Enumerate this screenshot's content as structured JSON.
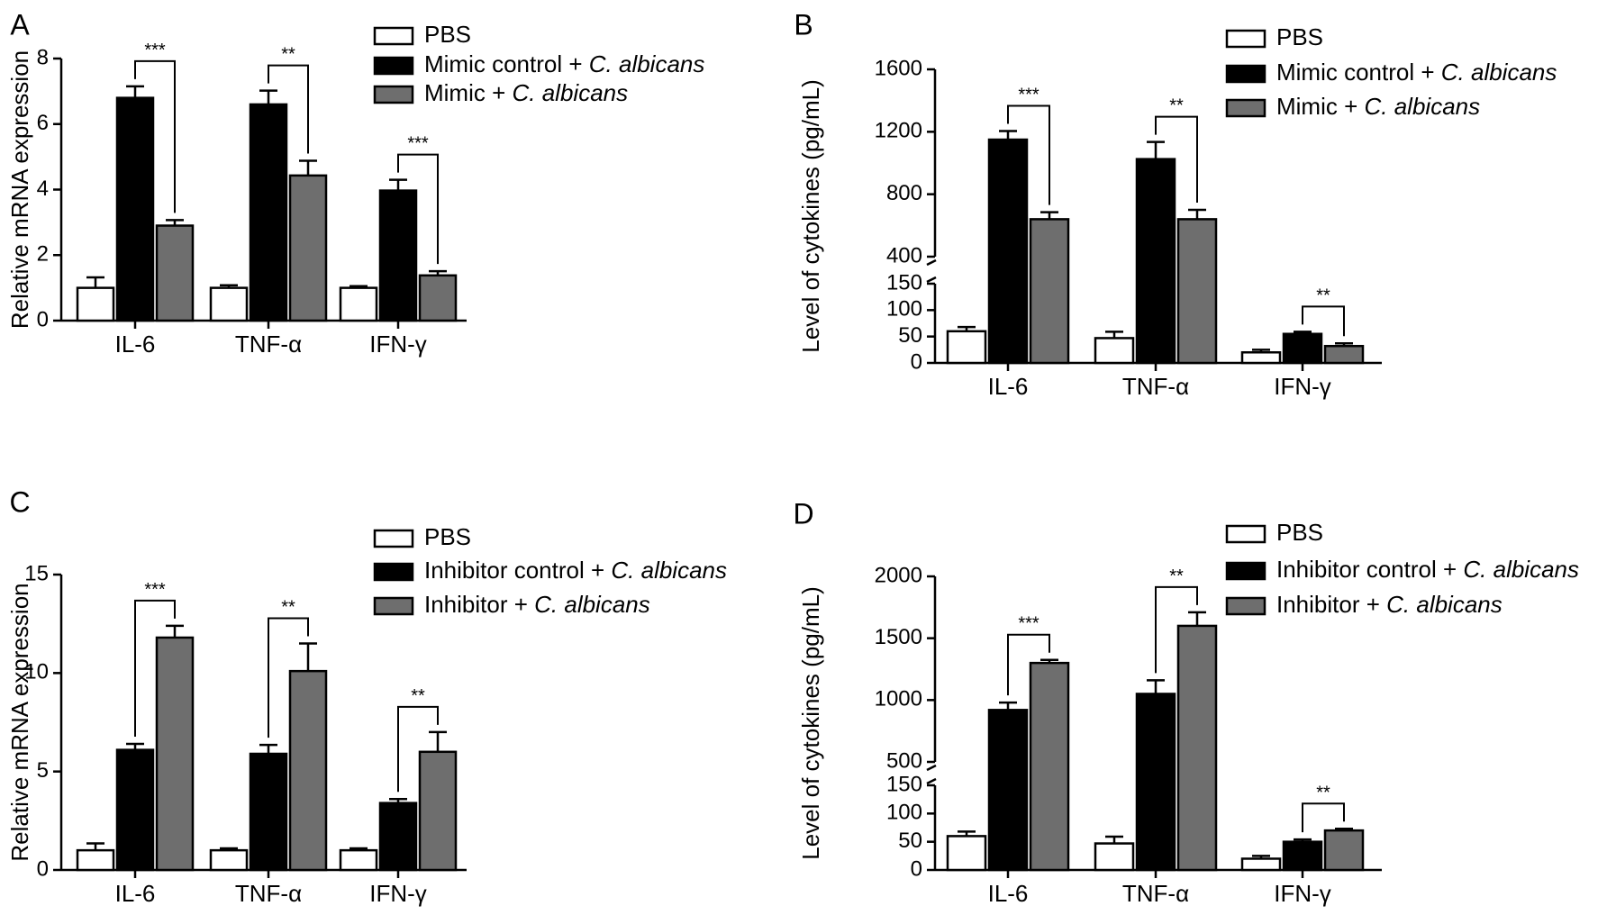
{
  "legend_colors": {
    "PBS": "#ffffff",
    "control": "#000000",
    "treated": "#6e6e6e"
  },
  "chart_data": [
    {
      "panel": "A",
      "type": "bar",
      "ylabel": "Relative mRNA expression",
      "categories": [
        "IL-6",
        "TNF-α",
        "IFN-γ"
      ],
      "ylim": [
        0,
        8
      ],
      "yticks": [
        "0",
        "2",
        "4",
        "6",
        "8"
      ],
      "series": [
        {
          "legend": "PBS",
          "legend_italic": "",
          "values": [
            1.0,
            1.0,
            1.0
          ],
          "err": [
            0.32,
            0.08,
            0.05
          ]
        },
        {
          "legend": "Mimic control + ",
          "legend_italic": "C. albicans",
          "values": [
            6.8,
            6.6,
            3.97
          ],
          "err": [
            0.35,
            0.42,
            0.33
          ]
        },
        {
          "legend": "Mimic + ",
          "legend_italic": "C. albicans",
          "values": [
            2.9,
            4.43,
            1.38
          ],
          "err": [
            0.17,
            0.45,
            0.13
          ]
        }
      ],
      "significance": [
        "***",
        "**",
        "***"
      ]
    },
    {
      "panel": "B",
      "type": "bar",
      "ylabel": "Level of cytokines (pg/mL)",
      "categories": [
        "IL-6",
        "TNF-α",
        "IFN-γ"
      ],
      "axis_break": true,
      "ylim_lower": [
        0,
        150
      ],
      "ylim_upper": [
        400,
        1600
      ],
      "yticks_lower": [
        "0",
        "50",
        "100",
        "150"
      ],
      "yticks_upper": [
        "400",
        "800",
        "1200",
        "1600"
      ],
      "series": [
        {
          "legend": "PBS",
          "legend_italic": "",
          "values": [
            60,
            47,
            20
          ],
          "err": [
            8,
            12,
            5
          ]
        },
        {
          "legend": "Mimic control + ",
          "legend_italic": "C. albicans",
          "values": [
            1150,
            1025,
            55
          ],
          "err": [
            55,
            110,
            4
          ]
        },
        {
          "legend": "Mimic + ",
          "legend_italic": "C. albicans",
          "values": [
            640,
            640,
            32
          ],
          "err": [
            45,
            60,
            5
          ]
        }
      ],
      "significance": [
        "***",
        "**",
        "**"
      ]
    },
    {
      "panel": "C",
      "type": "bar",
      "ylabel": "Relative mRNA expression",
      "categories": [
        "IL-6",
        "TNF-α",
        "IFN-γ"
      ],
      "ylim": [
        0,
        15
      ],
      "yticks": [
        "0",
        "5",
        "10",
        "15"
      ],
      "series": [
        {
          "legend": "PBS",
          "legend_italic": "",
          "values": [
            1.0,
            1.0,
            1.0
          ],
          "err": [
            0.35,
            0.1,
            0.1
          ]
        },
        {
          "legend": "Inhibitor control + ",
          "legend_italic": "C. albicans",
          "values": [
            6.1,
            5.9,
            3.4
          ],
          "err": [
            0.3,
            0.45,
            0.2
          ]
        },
        {
          "legend": "Inhibitor + ",
          "legend_italic": "C. albicans",
          "values": [
            11.8,
            10.1,
            6.0
          ],
          "err": [
            0.6,
            1.4,
            1.0
          ]
        }
      ],
      "significance": [
        "***",
        "**",
        "**"
      ]
    },
    {
      "panel": "D",
      "type": "bar",
      "ylabel": "Level of cytokines (pg/mL)",
      "categories": [
        "IL-6",
        "TNF-α",
        "IFN-γ"
      ],
      "axis_break": true,
      "ylim_lower": [
        0,
        150
      ],
      "ylim_upper": [
        500,
        2000
      ],
      "yticks_lower": [
        "0",
        "50",
        "100",
        "150"
      ],
      "yticks_upper": [
        "500",
        "1000",
        "1500",
        "2000"
      ],
      "series": [
        {
          "legend": "PBS",
          "legend_italic": "",
          "values": [
            60,
            47,
            20
          ],
          "err": [
            8,
            12,
            5
          ]
        },
        {
          "legend": "Inhibitor control + ",
          "legend_italic": "C. albicans",
          "values": [
            920,
            1050,
            50
          ],
          "err": [
            60,
            110,
            4
          ]
        },
        {
          "legend": "Inhibitor + ",
          "legend_italic": "C. albicans",
          "values": [
            1300,
            1600,
            70
          ],
          "err": [
            25,
            110,
            3
          ]
        }
      ],
      "significance": [
        "***",
        "**",
        "**"
      ]
    }
  ]
}
